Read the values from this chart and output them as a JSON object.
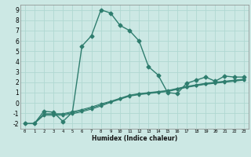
{
  "title": "",
  "xlabel": "Humidex (Indice chaleur)",
  "bg_color": "#cce8e4",
  "line_color": "#2e7d6e",
  "grid_color": "#b0d8d2",
  "x_data": [
    0,
    1,
    2,
    3,
    4,
    5,
    6,
    7,
    8,
    9,
    10,
    11,
    12,
    13,
    14,
    15,
    16,
    17,
    18,
    19,
    20,
    21,
    22,
    23
  ],
  "curve1_y": [
    -2.0,
    -2.0,
    -0.8,
    -0.9,
    -1.8,
    -0.9,
    5.5,
    6.5,
    9.0,
    8.7,
    7.5,
    7.0,
    6.0,
    3.5,
    2.7,
    1.0,
    0.9,
    1.9,
    2.2,
    2.5,
    2.1,
    2.6,
    2.5,
    2.5
  ],
  "curve2_y": [
    -2.0,
    -2.0,
    -1.05,
    -1.05,
    -1.05,
    -0.85,
    -0.65,
    -0.4,
    -0.1,
    0.15,
    0.45,
    0.75,
    0.9,
    1.0,
    1.1,
    1.2,
    1.4,
    1.6,
    1.75,
    1.9,
    2.0,
    2.1,
    2.2,
    2.3
  ],
  "curve3_y": [
    -2.0,
    -2.0,
    -1.1,
    -1.1,
    -1.1,
    -0.95,
    -0.75,
    -0.5,
    -0.2,
    0.1,
    0.4,
    0.7,
    0.85,
    0.95,
    1.05,
    1.15,
    1.35,
    1.55,
    1.7,
    1.85,
    1.95,
    2.05,
    2.15,
    2.25
  ],
  "curve4_y": [
    -2.0,
    -2.0,
    -1.2,
    -1.2,
    -1.2,
    -1.05,
    -0.85,
    -0.6,
    -0.3,
    0.05,
    0.35,
    0.65,
    0.8,
    0.9,
    1.0,
    1.1,
    1.3,
    1.5,
    1.65,
    1.8,
    1.9,
    2.0,
    2.1,
    2.2
  ],
  "ylim": [
    -2.5,
    9.5
  ],
  "xlim": [
    -0.5,
    23.5
  ],
  "yticks": [
    -2,
    -1,
    0,
    1,
    2,
    3,
    4,
    5,
    6,
    7,
    8,
    9
  ],
  "xticks": [
    0,
    1,
    2,
    3,
    4,
    5,
    6,
    7,
    8,
    9,
    10,
    11,
    12,
    13,
    14,
    15,
    16,
    17,
    18,
    19,
    20,
    21,
    22,
    23
  ]
}
